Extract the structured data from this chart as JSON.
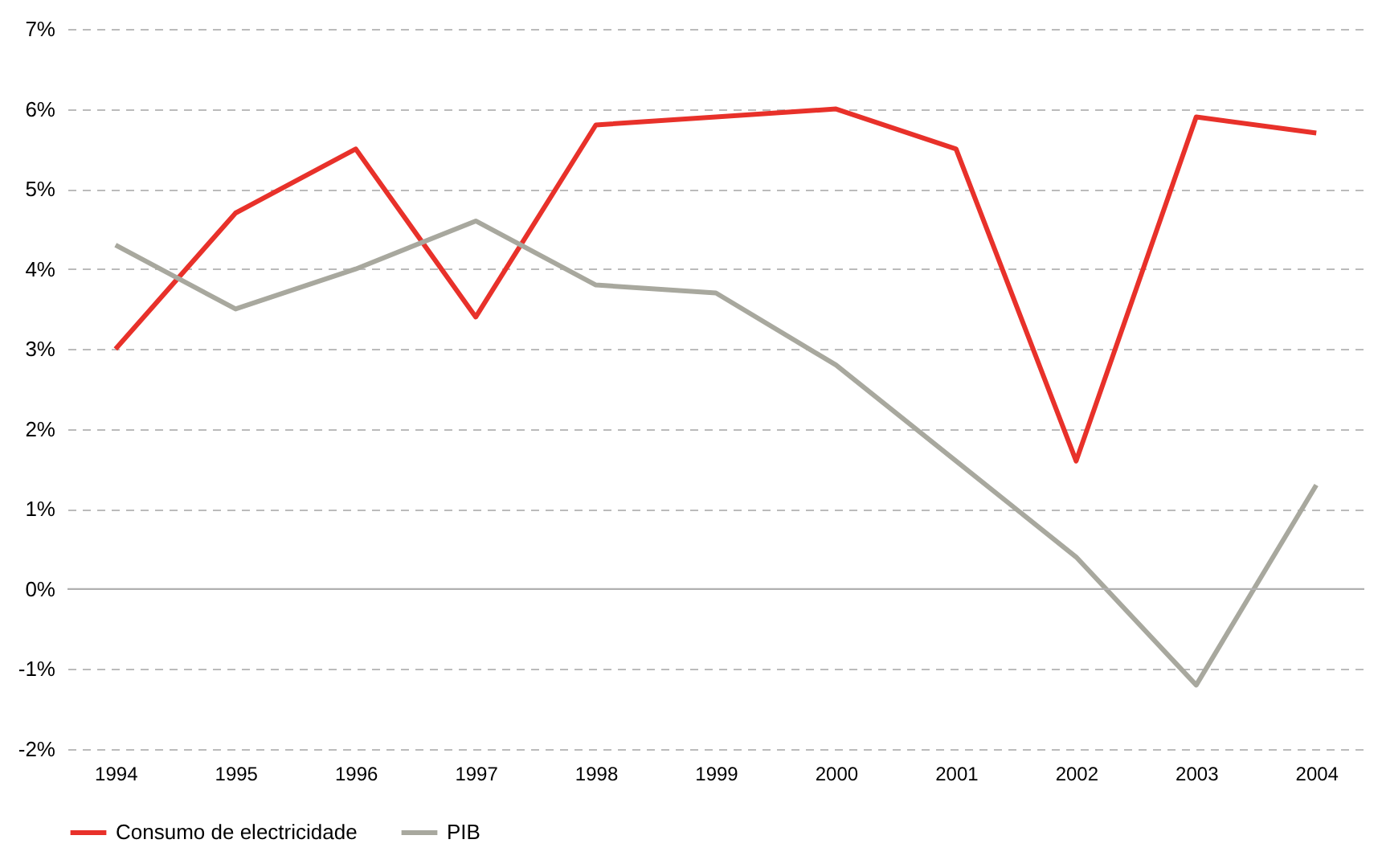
{
  "chart_data": {
    "type": "line",
    "categories": [
      "1994",
      "1995",
      "1996",
      "1997",
      "1998",
      "1999",
      "2000",
      "2001",
      "2002",
      "2003",
      "2004"
    ],
    "series": [
      {
        "name": "Consumo de electricidade",
        "color": "#e8312a",
        "values": [
          3.0,
          4.7,
          5.5,
          3.4,
          5.8,
          5.9,
          6.0,
          5.5,
          1.6,
          5.9,
          5.7
        ]
      },
      {
        "name": "PIB",
        "color": "#a8a89e",
        "values": [
          4.3,
          3.5,
          4.0,
          4.6,
          3.8,
          3.7,
          2.8,
          1.6,
          0.4,
          -1.2,
          1.3
        ]
      }
    ],
    "ylim": [
      -2,
      7
    ],
    "yticks": [
      {
        "value": -2,
        "label": "-2%"
      },
      {
        "value": -1,
        "label": "-1%"
      },
      {
        "value": 0,
        "label": "0%"
      },
      {
        "value": 1,
        "label": "1%"
      },
      {
        "value": 2,
        "label": "2%"
      },
      {
        "value": 3,
        "label": "3%"
      },
      {
        "value": 4,
        "label": "4%"
      },
      {
        "value": 5,
        "label": "5%"
      },
      {
        "value": 6,
        "label": "6%"
      },
      {
        "value": 7,
        "label": "7%"
      }
    ],
    "grid": "y",
    "legend": "bottom left",
    "marker": "none",
    "line_style": "solid",
    "ref_lines": [
      {
        "axis": "y",
        "value": 0,
        "label": null,
        "color": "#b0b0b0",
        "line_style": "solid"
      }
    ]
  }
}
